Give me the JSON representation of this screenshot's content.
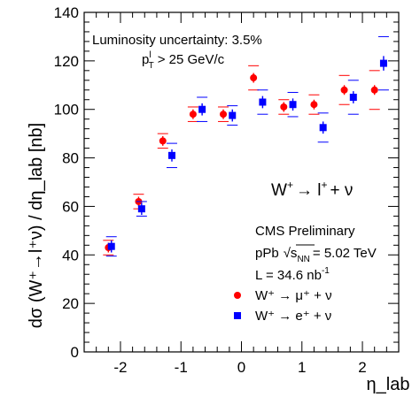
{
  "chart_data": {
    "type": "scatter",
    "title": "",
    "xlabel": "η_lab",
    "ylabel": "dσ (W⁺→l⁺ν) / dη_lab [nb]",
    "xlim": [
      -2.6,
      2.6
    ],
    "ylim": [
      0,
      140
    ],
    "x_ticks": [
      "-2",
      "-1",
      "0",
      "1",
      "2"
    ],
    "y_ticks": [
      "0",
      "20",
      "40",
      "60",
      "80",
      "100",
      "120",
      "140"
    ],
    "grid": false,
    "legend_position": "lower-right",
    "annotations": {
      "luminosity_uncertainty": "Luminosity uncertainty: 3.5%",
      "pt_cut_prefix": "p",
      "pt_cut_sup": "l",
      "pt_cut_sub": "T",
      "pt_cut_value": "> 25 GeV/c",
      "process_W": "W",
      "process_plus": "+",
      "process_arrow": "→ l",
      "process_tail": "+ ν",
      "experiment": "CMS Preliminary",
      "system": "pPb",
      "energy_sqrt": "√s",
      "energy_sub": "NN",
      "energy_value": "= 5.02 TeV",
      "lumi_prefix": "L = 34.6 nb",
      "lumi_sup": "-1"
    },
    "series": [
      {
        "name": "W⁺ → μ⁺ + ν",
        "color": "#ff0000",
        "marker": "circle",
        "x": [
          -2.2,
          -1.7,
          -1.3,
          -0.8,
          -0.3,
          0.2,
          0.7,
          1.2,
          1.7,
          2.2
        ],
        "y": [
          43,
          62,
          87,
          98,
          98,
          113,
          101,
          102,
          108,
          108
        ],
        "stat_err": [
          2,
          2,
          2,
          2,
          2,
          2,
          2,
          2,
          2,
          2
        ],
        "sys_err": [
          3,
          3,
          3,
          3,
          3,
          5,
          3,
          4,
          6,
          8
        ]
      },
      {
        "name": "W⁺ → e⁺ + ν",
        "color": "#0000ff",
        "marker": "square",
        "x": [
          -2.15,
          -1.65,
          -1.15,
          -0.65,
          -0.15,
          0.35,
          0.85,
          1.35,
          1.85,
          2.35
        ],
        "y": [
          43.5,
          59,
          81,
          100,
          97.5,
          103,
          102,
          92.5,
          105,
          119
        ],
        "stat_err": [
          2.5,
          2.5,
          2.5,
          2.5,
          2.5,
          2.5,
          2.5,
          2.5,
          2.5,
          3
        ],
        "sys_err": [
          4,
          3,
          5,
          5,
          4,
          5,
          5,
          6,
          7,
          11
        ]
      }
    ]
  }
}
